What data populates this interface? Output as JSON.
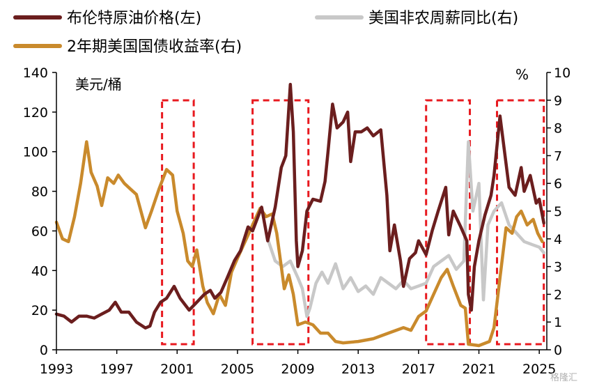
{
  "chart_data": {
    "type": "line",
    "legend": {
      "placement": "top",
      "items": [
        {
          "label": "布伦特原油价格(左)",
          "color": "#6b1e1e"
        },
        {
          "label": "美国非农周薪同比(右)",
          "color": "#c8c8c8"
        },
        {
          "label": "2年期美国国债收益率(右)",
          "color": "#c98a2c"
        }
      ]
    },
    "left_axis": {
      "unit": "美元/桶",
      "min": 0,
      "max": 140,
      "ticks": [
        "0",
        "20",
        "40",
        "60",
        "80",
        "100",
        "120",
        "140"
      ]
    },
    "right_axis": {
      "unit": "%",
      "min": 0,
      "max": 10,
      "ticks": [
        "0",
        "1",
        "2",
        "3",
        "4",
        "5",
        "6",
        "7",
        "8",
        "9",
        "10"
      ]
    },
    "x_axis": {
      "min": 1993,
      "max": 2025.5,
      "ticks": [
        "1993",
        "1997",
        "2001",
        "2005",
        "2009",
        "2013",
        "2017",
        "2021",
        "2025"
      ]
    },
    "highlight_periods": [
      [
        2000.0,
        2002.1
      ],
      [
        2006.0,
        2009.7
      ],
      [
        2017.5,
        2020.4
      ],
      [
        2022.2,
        2025.3
      ]
    ],
    "series": [
      {
        "name": "布伦特原油价格(左)",
        "axis": "left",
        "color": "#6b1e1e",
        "points": [
          [
            1993.0,
            18
          ],
          [
            1993.5,
            17
          ],
          [
            1994.0,
            14
          ],
          [
            1994.5,
            17
          ],
          [
            1995.0,
            17
          ],
          [
            1995.5,
            16
          ],
          [
            1996.0,
            18
          ],
          [
            1996.5,
            20
          ],
          [
            1996.9,
            24
          ],
          [
            1997.3,
            19
          ],
          [
            1997.8,
            19
          ],
          [
            1998.3,
            14
          ],
          [
            1998.9,
            11
          ],
          [
            1999.2,
            12
          ],
          [
            1999.5,
            19
          ],
          [
            1999.9,
            24
          ],
          [
            2000.3,
            26
          ],
          [
            2000.8,
            32
          ],
          [
            2001.2,
            26
          ],
          [
            2001.8,
            20
          ],
          [
            2002.3,
            24
          ],
          [
            2002.8,
            28
          ],
          [
            2003.2,
            30
          ],
          [
            2003.5,
            26
          ],
          [
            2003.9,
            29
          ],
          [
            2004.3,
            36
          ],
          [
            2004.8,
            45
          ],
          [
            2005.2,
            50
          ],
          [
            2005.7,
            62
          ],
          [
            2006.0,
            60
          ],
          [
            2006.6,
            72
          ],
          [
            2007.0,
            55
          ],
          [
            2007.5,
            72
          ],
          [
            2007.9,
            92
          ],
          [
            2008.2,
            98
          ],
          [
            2008.5,
            134
          ],
          [
            2008.7,
            110
          ],
          [
            2008.9,
            55
          ],
          [
            2009.0,
            42
          ],
          [
            2009.3,
            50
          ],
          [
            2009.6,
            70
          ],
          [
            2010.0,
            76
          ],
          [
            2010.5,
            75
          ],
          [
            2010.8,
            85
          ],
          [
            2011.0,
            100
          ],
          [
            2011.3,
            124
          ],
          [
            2011.6,
            112
          ],
          [
            2012.0,
            115
          ],
          [
            2012.3,
            120
          ],
          [
            2012.5,
            95
          ],
          [
            2012.8,
            110
          ],
          [
            2013.2,
            110
          ],
          [
            2013.6,
            112
          ],
          [
            2014.0,
            108
          ],
          [
            2014.5,
            111
          ],
          [
            2014.9,
            78
          ],
          [
            2015.1,
            50
          ],
          [
            2015.4,
            63
          ],
          [
            2015.8,
            45
          ],
          [
            2016.0,
            32
          ],
          [
            2016.4,
            46
          ],
          [
            2016.8,
            49
          ],
          [
            2017.0,
            55
          ],
          [
            2017.5,
            48
          ],
          [
            2017.9,
            60
          ],
          [
            2018.3,
            70
          ],
          [
            2018.8,
            82
          ],
          [
            2019.0,
            58
          ],
          [
            2019.3,
            70
          ],
          [
            2019.8,
            62
          ],
          [
            2020.2,
            55
          ],
          [
            2020.3,
            28
          ],
          [
            2020.5,
            20
          ],
          [
            2020.7,
            42
          ],
          [
            2021.0,
            55
          ],
          [
            2021.4,
            68
          ],
          [
            2021.8,
            78
          ],
          [
            2022.0,
            88
          ],
          [
            2022.4,
            118
          ],
          [
            2022.7,
            100
          ],
          [
            2023.0,
            82
          ],
          [
            2023.4,
            78
          ],
          [
            2023.8,
            92
          ],
          [
            2024.0,
            80
          ],
          [
            2024.4,
            88
          ],
          [
            2024.8,
            74
          ],
          [
            2025.0,
            76
          ],
          [
            2025.3,
            64
          ]
        ]
      },
      {
        "name": "美国非农周薪同比(右)",
        "axis": "right",
        "color": "#c8c8c8",
        "points": [
          [
            2007.0,
            4.0
          ],
          [
            2007.5,
            3.2
          ],
          [
            2008.0,
            3.0
          ],
          [
            2008.5,
            3.2
          ],
          [
            2009.0,
            2.6
          ],
          [
            2009.3,
            2.2
          ],
          [
            2009.6,
            1.2
          ],
          [
            2009.8,
            1.5
          ],
          [
            2010.2,
            2.4
          ],
          [
            2010.6,
            2.8
          ],
          [
            2011.0,
            2.4
          ],
          [
            2011.5,
            3.1
          ],
          [
            2012.0,
            2.2
          ],
          [
            2012.5,
            2.6
          ],
          [
            2013.0,
            2.1
          ],
          [
            2013.5,
            2.3
          ],
          [
            2014.0,
            2.0
          ],
          [
            2014.5,
            2.6
          ],
          [
            2015.0,
            2.4
          ],
          [
            2015.5,
            2.2
          ],
          [
            2016.0,
            2.5
          ],
          [
            2016.5,
            2.2
          ],
          [
            2017.0,
            2.3
          ],
          [
            2017.5,
            2.4
          ],
          [
            2018.0,
            3.0
          ],
          [
            2018.5,
            3.2
          ],
          [
            2019.0,
            3.4
          ],
          [
            2019.5,
            2.9
          ],
          [
            2020.0,
            3.2
          ],
          [
            2020.3,
            7.5
          ],
          [
            2020.6,
            5.0
          ],
          [
            2021.0,
            6.0
          ],
          [
            2021.3,
            1.8
          ],
          [
            2021.6,
            4.5
          ],
          [
            2022.0,
            5.0
          ],
          [
            2022.5,
            5.3
          ],
          [
            2023.0,
            4.5
          ],
          [
            2023.5,
            4.2
          ],
          [
            2024.0,
            3.9
          ],
          [
            2024.5,
            3.8
          ],
          [
            2025.0,
            3.7
          ],
          [
            2025.3,
            3.5
          ]
        ]
      },
      {
        "name": "2年期美国国债收益率(右)",
        "axis": "right",
        "color": "#c98a2c",
        "points": [
          [
            1993.0,
            4.6
          ],
          [
            1993.4,
            4.0
          ],
          [
            1993.8,
            3.9
          ],
          [
            1994.2,
            4.8
          ],
          [
            1994.6,
            6.0
          ],
          [
            1995.0,
            7.5
          ],
          [
            1995.3,
            6.4
          ],
          [
            1995.7,
            5.9
          ],
          [
            1996.0,
            5.2
          ],
          [
            1996.4,
            6.2
          ],
          [
            1996.8,
            6.0
          ],
          [
            1997.1,
            6.3
          ],
          [
            1997.5,
            6.0
          ],
          [
            1997.9,
            5.8
          ],
          [
            1998.3,
            5.6
          ],
          [
            1998.6,
            5.0
          ],
          [
            1998.9,
            4.4
          ],
          [
            1999.3,
            5.0
          ],
          [
            1999.8,
            5.8
          ],
          [
            2000.3,
            6.5
          ],
          [
            2000.7,
            6.3
          ],
          [
            2001.0,
            5.0
          ],
          [
            2001.4,
            4.2
          ],
          [
            2001.7,
            3.2
          ],
          [
            2002.0,
            3.0
          ],
          [
            2002.3,
            3.6
          ],
          [
            2002.7,
            2.3
          ],
          [
            2003.0,
            1.7
          ],
          [
            2003.4,
            1.3
          ],
          [
            2003.8,
            2.0
          ],
          [
            2004.2,
            1.6
          ],
          [
            2004.6,
            2.8
          ],
          [
            2005.0,
            3.3
          ],
          [
            2005.5,
            3.9
          ],
          [
            2006.0,
            4.5
          ],
          [
            2006.5,
            5.1
          ],
          [
            2006.9,
            4.8
          ],
          [
            2007.3,
            4.9
          ],
          [
            2007.6,
            4.2
          ],
          [
            2007.9,
            3.0
          ],
          [
            2008.1,
            2.2
          ],
          [
            2008.4,
            2.7
          ],
          [
            2008.7,
            2.0
          ],
          [
            2009.0,
            0.9
          ],
          [
            2009.5,
            1.0
          ],
          [
            2010.0,
            0.9
          ],
          [
            2010.5,
            0.6
          ],
          [
            2011.0,
            0.6
          ],
          [
            2011.5,
            0.3
          ],
          [
            2012.0,
            0.25
          ],
          [
            2013.0,
            0.3
          ],
          [
            2014.0,
            0.4
          ],
          [
            2015.0,
            0.6
          ],
          [
            2016.0,
            0.8
          ],
          [
            2016.5,
            0.7
          ],
          [
            2017.0,
            1.2
          ],
          [
            2017.5,
            1.4
          ],
          [
            2018.0,
            2.0
          ],
          [
            2018.5,
            2.6
          ],
          [
            2018.9,
            2.9
          ],
          [
            2019.3,
            2.3
          ],
          [
            2019.8,
            1.6
          ],
          [
            2020.1,
            1.5
          ],
          [
            2020.3,
            0.2
          ],
          [
            2021.0,
            0.15
          ],
          [
            2021.7,
            0.3
          ],
          [
            2022.0,
            0.8
          ],
          [
            2022.4,
            2.6
          ],
          [
            2022.8,
            4.4
          ],
          [
            2023.2,
            4.2
          ],
          [
            2023.5,
            4.8
          ],
          [
            2023.8,
            5.0
          ],
          [
            2024.2,
            4.5
          ],
          [
            2024.6,
            4.7
          ],
          [
            2024.9,
            4.2
          ],
          [
            2025.2,
            3.9
          ]
        ]
      }
    ]
  }
}
